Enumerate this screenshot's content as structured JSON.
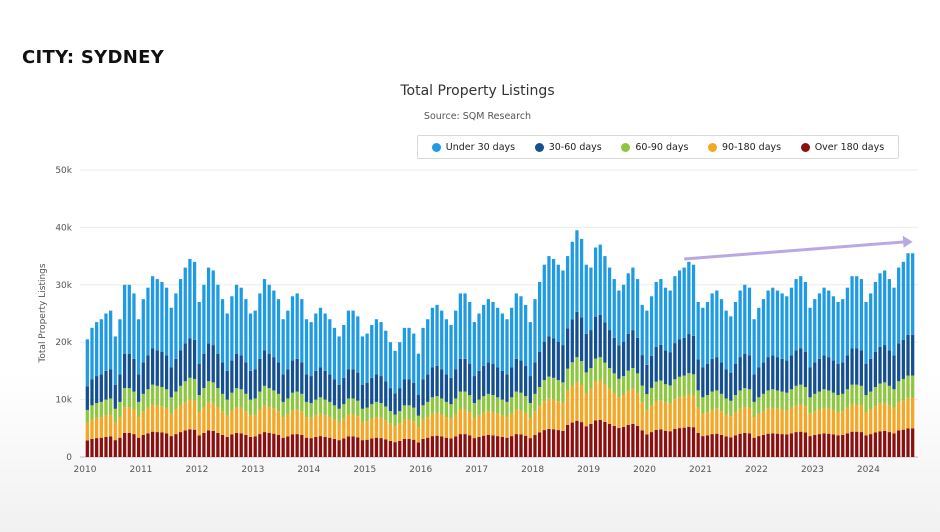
{
  "page": {
    "heading": "CITY: SYDNEY"
  },
  "chart_data": {
    "type": "bar",
    "stacked": true,
    "title": "Total Property Listings",
    "subtitle": "Source: SQM Research",
    "ylabel": "Total Property Listings",
    "xlabel": "",
    "ylim": [
      0,
      50000
    ],
    "y_tick_labels": [
      "0",
      "10k",
      "20k",
      "30k",
      "40k",
      "50k"
    ],
    "x_tick_labels": [
      "2010",
      "2011",
      "2012",
      "2013",
      "2014",
      "2015",
      "2016",
      "2017",
      "2018",
      "2019",
      "2020",
      "2021",
      "2022",
      "2023",
      "2024"
    ],
    "grid": true,
    "legend_position": "top-right",
    "frequency": "monthly",
    "start": "2010-01",
    "end": "2024-10",
    "series": [
      {
        "name": "Under 30 days",
        "color": "#1f9be3"
      },
      {
        "name": "30-60 days",
        "color": "#134f91"
      },
      {
        "name": "60-90 days",
        "color": "#8dc63f"
      },
      {
        "name": "90-180 days",
        "color": "#f5a623"
      },
      {
        "name": "Over 180 days",
        "color": "#8b0f0f"
      }
    ],
    "trend_arrow": {
      "color": "#b9a8e2",
      "from": "2020-09",
      "to": "2024-10",
      "y_from": 34500,
      "y_to": 37500
    },
    "annual_profile": {
      "month_totals": {
        "2010": [
          20500,
          22500,
          23500,
          24000,
          25000,
          25500,
          21000,
          24000,
          30000,
          30000,
          28500,
          24000
        ],
        "2011": [
          27500,
          29500,
          31500,
          31000,
          30500,
          29500,
          26000,
          28500,
          31000,
          33000,
          34500,
          34000
        ],
        "2012": [
          27000,
          30000,
          33000,
          32500,
          30000,
          27500,
          25000,
          28000,
          30000,
          29500,
          27500,
          25000
        ],
        "2013": [
          25500,
          28500,
          31000,
          30000,
          29000,
          27500,
          24000,
          25500,
          28000,
          28500,
          27500,
          24000
        ],
        "2014": [
          23500,
          25000,
          26000,
          25000,
          24000,
          22500,
          21000,
          23000,
          25500,
          25500,
          24500,
          21000
        ],
        "2015": [
          21500,
          23000,
          24000,
          23500,
          22000,
          20000,
          18500,
          20000,
          22500,
          22500,
          21500,
          18000
        ],
        "2016": [
          22500,
          24000,
          26000,
          26500,
          25500,
          24000,
          23000,
          25500,
          28500,
          28500,
          27000,
          23500
        ],
        "2017": [
          25000,
          26500,
          27500,
          27000,
          26000,
          25000,
          24000,
          26000,
          28500,
          28000,
          26500,
          23500
        ],
        "2018": [
          27500,
          30500,
          33500,
          35000,
          34500,
          33500,
          32500,
          35000,
          37500,
          39500,
          38000,
          33500
        ],
        "2019": [
          33000,
          36500,
          37000,
          35000,
          33000,
          31000,
          29000,
          30000,
          32000,
          33000,
          31000,
          26500
        ],
        "2020": [
          25500,
          28000,
          30500,
          31000,
          29500,
          29000,
          31500,
          32500,
          33000,
          34000,
          33500,
          27000
        ],
        "2021": [
          26000,
          27000,
          28500,
          29000,
          27500,
          25500,
          24500,
          27000,
          29000,
          30000,
          29500,
          24000
        ],
        "2022": [
          26000,
          27500,
          29000,
          29500,
          29000,
          28500,
          28000,
          29500,
          31000,
          31500,
          30500,
          26000
        ],
        "2023": [
          27500,
          28500,
          29500,
          29000,
          28000,
          27000,
          27500,
          29500,
          31500,
          31500,
          31000,
          27000
        ],
        "2024": [
          28500,
          30500,
          32000,
          32500,
          31000,
          29500,
          33000,
          34000,
          35500,
          35500
        ]
      },
      "share_profile": {
        "Under 30 days": 0.4,
        "30-60 days": 0.2,
        "60-90 days": 0.11,
        "90-180 days": 0.15,
        "Over 180 days": 0.14
      }
    }
  }
}
